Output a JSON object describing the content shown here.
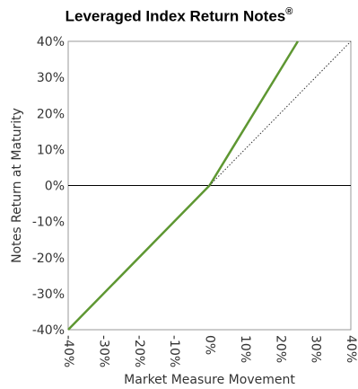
{
  "chart_data": {
    "type": "line",
    "title": "Leveraged Index Return Notes",
    "title_mark": "®",
    "xlabel": "Market Measure Movement",
    "ylabel": "Notes Return at Maturity",
    "xlim": [
      -40,
      40
    ],
    "ylim": [
      -40,
      40
    ],
    "x_ticks": [
      "-40%",
      "-30%",
      "-20%",
      "-10%",
      "0%",
      "10%",
      "20%",
      "30%",
      "40%"
    ],
    "y_ticks": [
      "40%",
      "30%",
      "20%",
      "10%",
      "0%",
      "-10%",
      "-20%",
      "-30%",
      "-40%"
    ],
    "x_tick_values": [
      -40,
      -30,
      -20,
      -10,
      0,
      10,
      20,
      30,
      40
    ],
    "y_tick_values": [
      40,
      30,
      20,
      10,
      0,
      -10,
      -20,
      -30,
      -40
    ],
    "grid": false,
    "series": [
      {
        "style": "solid",
        "color": "#5e9732",
        "points": [
          [
            -40,
            -40
          ],
          [
            0,
            0
          ],
          [
            25,
            40
          ]
        ]
      },
      {
        "style": "dotted",
        "color": "#333333",
        "points": [
          [
            0,
            0
          ],
          [
            40,
            40
          ]
        ]
      }
    ],
    "reference_line_y": 0,
    "colors": {
      "frame": "#999999",
      "zero_line": "#000000",
      "text": "#333333"
    }
  }
}
